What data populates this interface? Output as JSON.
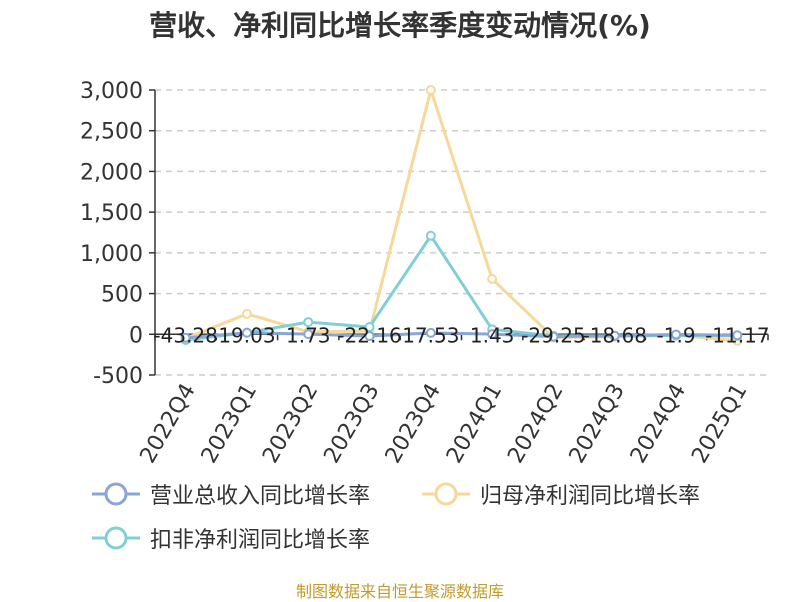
{
  "colors": {
    "revenue": "#8aa6d6",
    "net_profit": "#f8d89a",
    "deducted_net_profit": "#7fd0d6",
    "grid": "#cccccc",
    "axis": "#333333",
    "source": "#c49a2c"
  },
  "source_text": "制图数据来自恒生聚源数据库",
  "chart_data": {
    "type": "line",
    "title": "营收、净利同比增长率季度变动情况(%)",
    "categories": [
      "2022Q4",
      "2023Q1",
      "2023Q2",
      "2023Q3",
      "2023Q4",
      "2024Q1",
      "2024Q2",
      "2024Q3",
      "2024Q4",
      "2025Q1"
    ],
    "ylim": [
      -500,
      3000
    ],
    "yticks": [
      -500,
      0,
      500,
      1000,
      1500,
      2000,
      2500,
      3000
    ],
    "ytick_labels": [
      "-500",
      "0",
      "500",
      "1,000",
      "1,500",
      "2,000",
      "2,500",
      "3,000"
    ],
    "grid": true,
    "legend_position": "bottom",
    "series": [
      {
        "name": "营业总收入同比增长率",
        "color_key": "revenue",
        "values": [
          -43.28,
          19.03,
          1.73,
          -22.16,
          17.53,
          1.43,
          -29.25,
          -18.68,
          -1.9,
          -11.17
        ],
        "labels": [
          "-43.28",
          "19.03",
          "1.73",
          "-22.16",
          "17.53",
          "1.43",
          "-29.25",
          "-18.68",
          "-1.9",
          "-11.17"
        ]
      },
      {
        "name": "归母净利润同比增长率",
        "color_key": "net_profit",
        "values": [
          -50,
          250,
          30,
          40,
          3000,
          680,
          -40,
          -30,
          -10,
          -80
        ]
      },
      {
        "name": "扣非净利润同比增长率",
        "color_key": "deducted_net_profit",
        "values": [
          -70,
          20,
          150,
          90,
          1210,
          60,
          -20,
          -20,
          -15,
          -20
        ]
      }
    ]
  }
}
